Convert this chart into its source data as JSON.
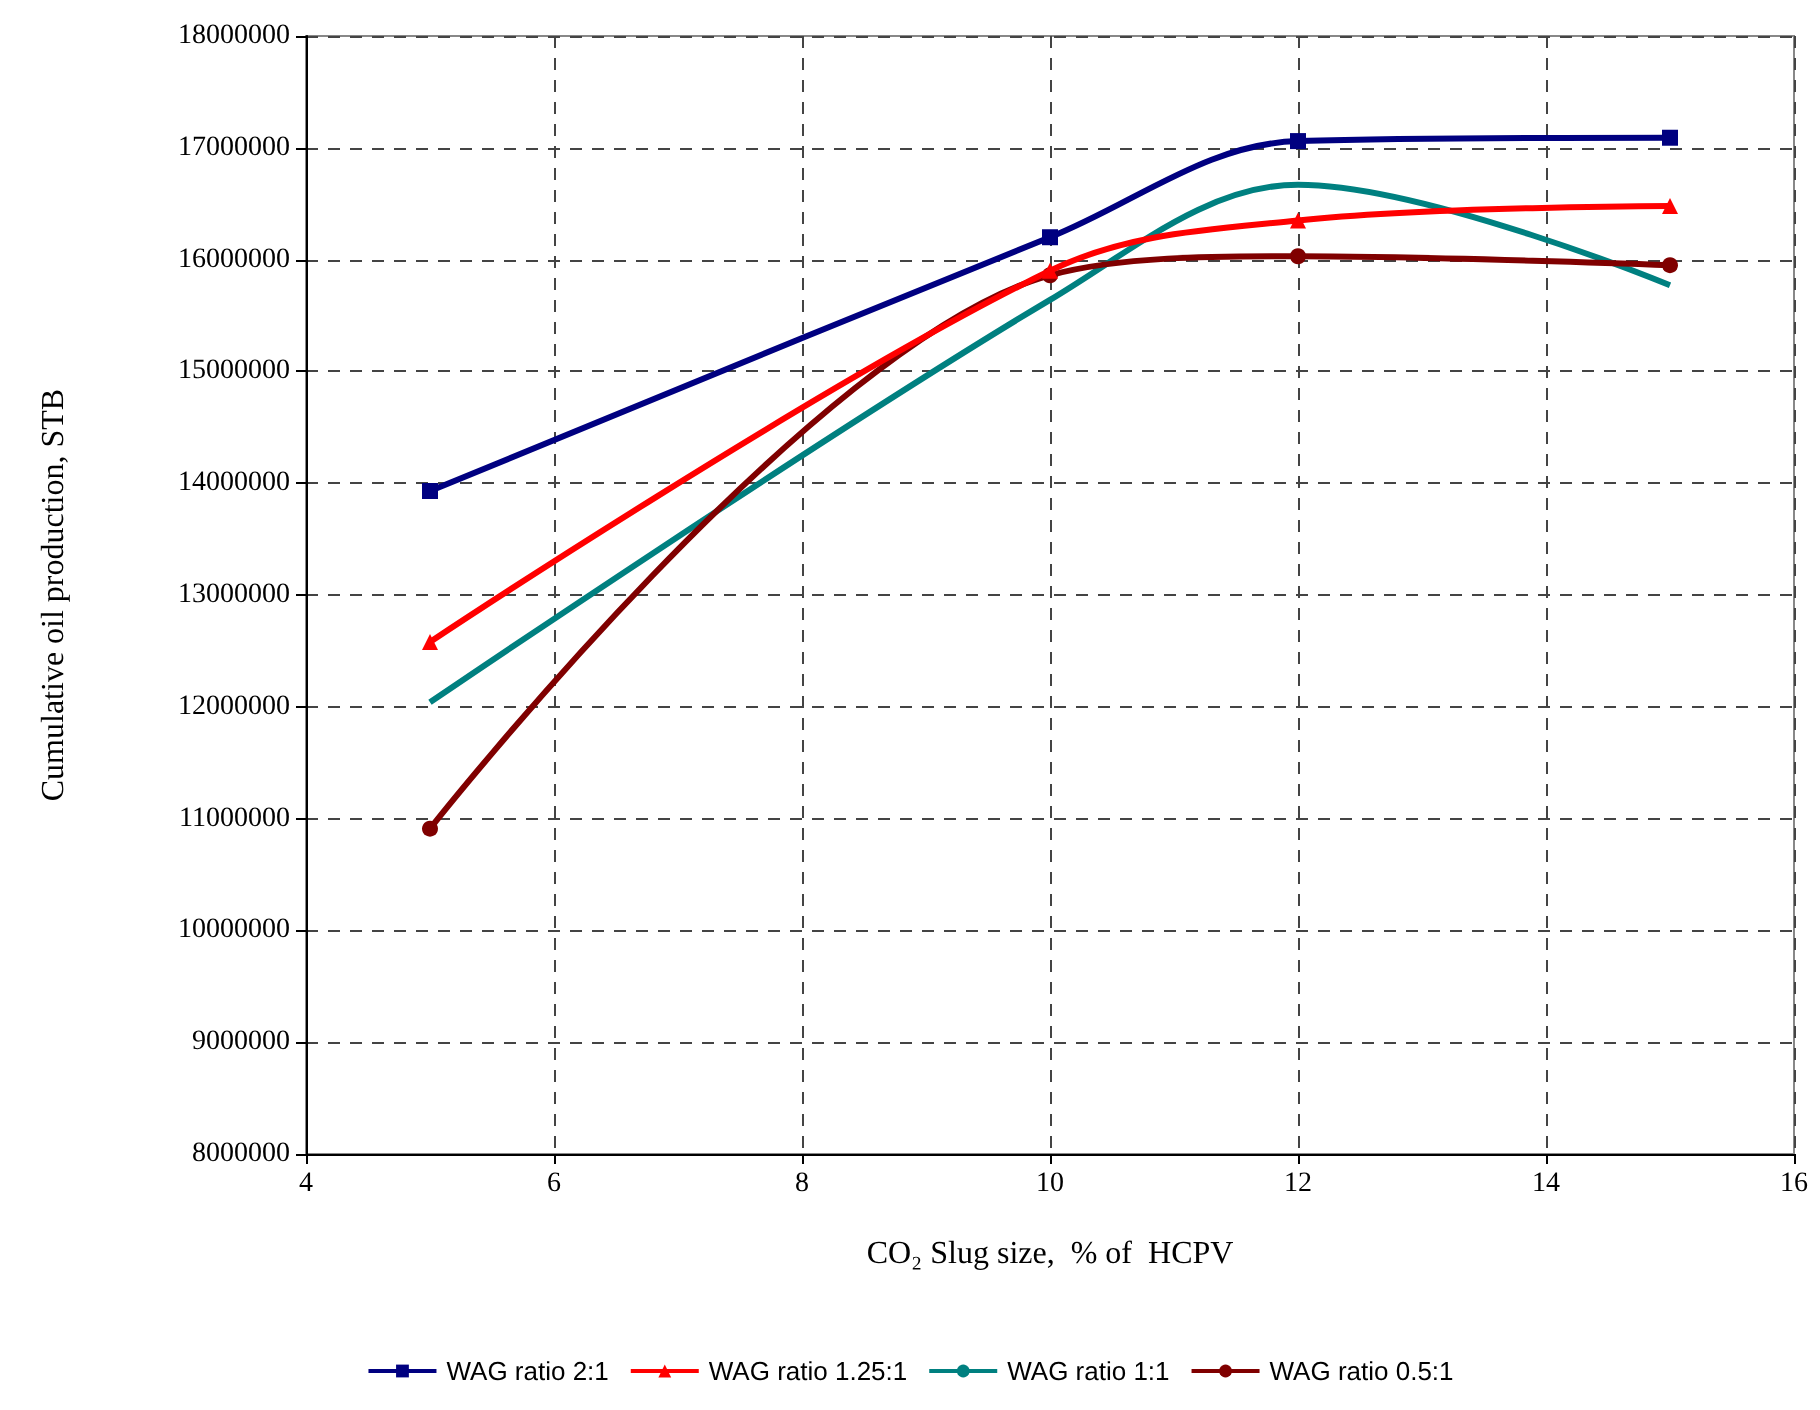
{
  "chart_data": {
    "type": "line",
    "xlabel": "CO₂ Slug size,  % of  HCPV",
    "ylabel": "Cumulative oil production, STB",
    "xlim": [
      4,
      16
    ],
    "xticks": [
      4,
      6,
      8,
      10,
      12,
      14,
      16
    ],
    "ylim": [
      8000000,
      18000000
    ],
    "yticks": [
      8000000,
      9000000,
      10000000,
      11000000,
      12000000,
      13000000,
      14000000,
      15000000,
      16000000,
      17000000,
      18000000
    ],
    "grid": true,
    "legend": "bottom",
    "series": [
      {
        "name": "WAG ratio 2:1",
        "color": "#000080",
        "marker": "square",
        "x": [
          5,
          10,
          12,
          15
        ],
        "values": [
          13930000,
          16200000,
          17060000,
          17090000
        ]
      },
      {
        "name": "WAG ratio 1.25:1",
        "color": "#ff0000",
        "marker": "triangle",
        "x": [
          5,
          10,
          12,
          15
        ],
        "values": [
          12580000,
          15900000,
          16350000,
          16480000
        ]
      },
      {
        "name": "WAG ratio 1:1",
        "color": "#008080",
        "marker": "none",
        "x": [
          5,
          10,
          12,
          15
        ],
        "values": [
          12040000,
          15640000,
          16670000,
          15770000
        ]
      },
      {
        "name": "WAG ratio 0.5:1",
        "color": "#800000",
        "marker": "circle",
        "x": [
          5,
          10,
          12,
          15
        ],
        "values": [
          10910000,
          15860000,
          16030000,
          15950000
        ]
      }
    ]
  }
}
